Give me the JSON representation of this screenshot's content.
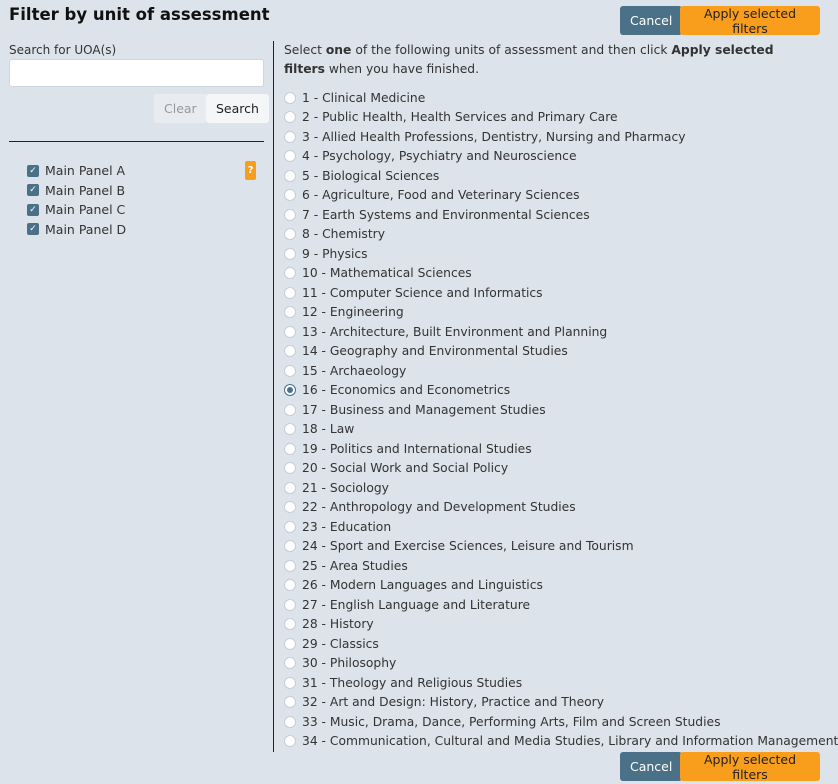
{
  "title": "Filter by unit of assessment",
  "buttons": {
    "cancel": "Cancel",
    "apply": "Apply selected filters",
    "clear": "Clear",
    "search": "Search"
  },
  "search": {
    "label": "Search for UOA(s)",
    "value": "",
    "placeholder": ""
  },
  "help": "?",
  "panels": [
    {
      "label": "Main Panel A",
      "checked": true
    },
    {
      "label": "Main Panel B",
      "checked": true
    },
    {
      "label": "Main Panel C",
      "checked": true
    },
    {
      "label": "Main Panel D",
      "checked": true
    }
  ],
  "instructions": {
    "pre": "Select ",
    "bold1": "one",
    "mid": " of the following units of assessment and then click ",
    "bold2": "Apply selected filters",
    "post": " when you have finished."
  },
  "selected": 16,
  "units": [
    "1 - Clinical Medicine",
    "2 - Public Health, Health Services and Primary Care",
    "3 - Allied Health Professions, Dentistry, Nursing and Pharmacy",
    "4 - Psychology, Psychiatry and Neuroscience",
    "5 - Biological Sciences",
    "6 - Agriculture, Food and Veterinary Sciences",
    "7 - Earth Systems and Environmental Sciences",
    "8 - Chemistry",
    "9 - Physics",
    "10 - Mathematical Sciences",
    "11 - Computer Science and Informatics",
    "12 - Engineering",
    "13 - Architecture, Built Environment and Planning",
    "14 - Geography and Environmental Studies",
    "15 - Archaeology",
    "16 - Economics and Econometrics",
    "17 - Business and Management Studies",
    "18 - Law",
    "19 - Politics and International Studies",
    "20 - Social Work and Social Policy",
    "21 - Sociology",
    "22 - Anthropology and Development Studies",
    "23 - Education",
    "24 - Sport and Exercise Sciences, Leisure and Tourism",
    "25 - Area Studies",
    "26 - Modern Languages and Linguistics",
    "27 - English Language and Literature",
    "28 - History",
    "29 - Classics",
    "30 - Philosophy",
    "31 - Theology and Religious Studies",
    "32 - Art and Design: History, Practice and Theory",
    "33 - Music, Drama, Dance, Performing Arts, Film and Screen Studies",
    "34 - Communication, Cultural and Media Studies, Library and Information Management"
  ]
}
